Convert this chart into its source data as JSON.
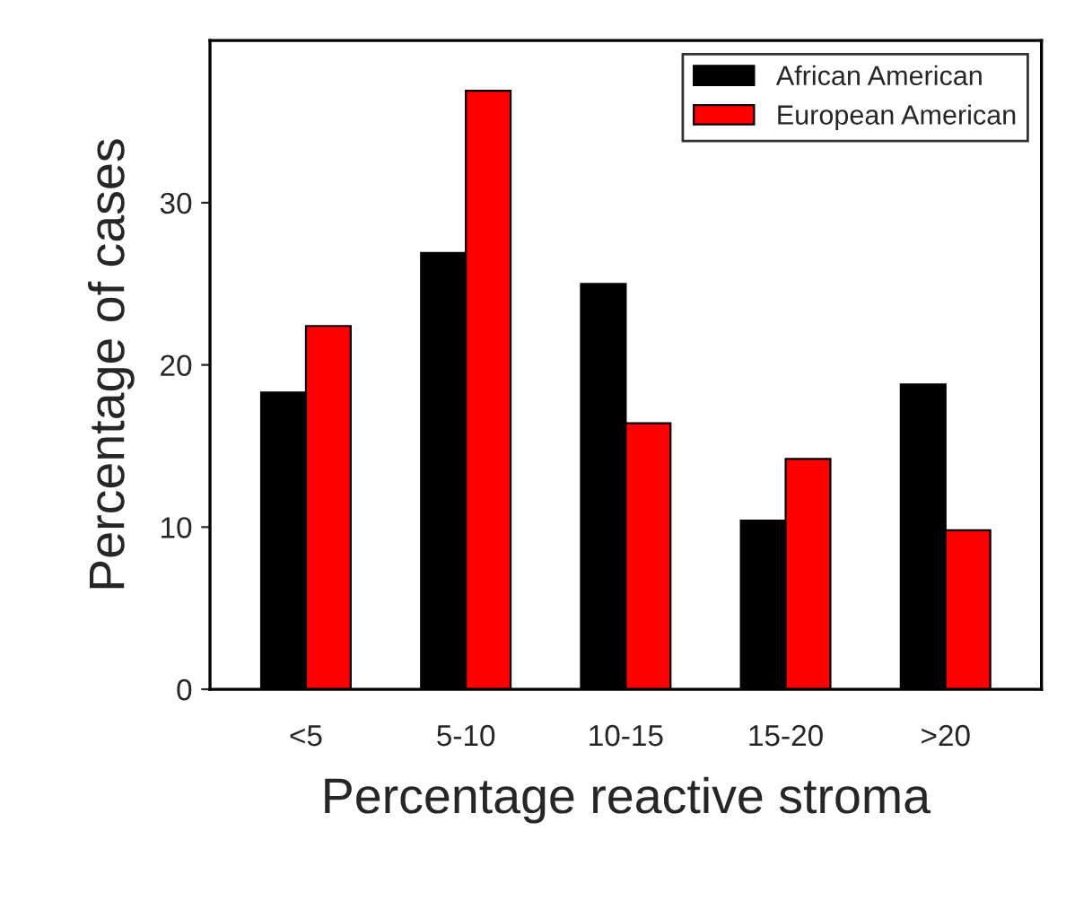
{
  "chart_data": {
    "type": "bar",
    "xlabel": "Percentage reactive stroma",
    "ylabel": "Percentage of cases",
    "categories": [
      "<5",
      "5-10",
      "10-15",
      "15-20",
      ">20"
    ],
    "series": [
      {
        "name": "African American",
        "color": "#000000",
        "values": [
          18.3,
          26.9,
          25.0,
          10.4,
          18.8
        ]
      },
      {
        "name": "European American",
        "color": "#ff0000",
        "values": [
          22.4,
          36.9,
          16.4,
          14.2,
          9.8
        ]
      }
    ],
    "ylim": [
      0,
      40
    ],
    "yticks": [
      0,
      10,
      20,
      30
    ],
    "grid": false,
    "legend": "top right"
  }
}
